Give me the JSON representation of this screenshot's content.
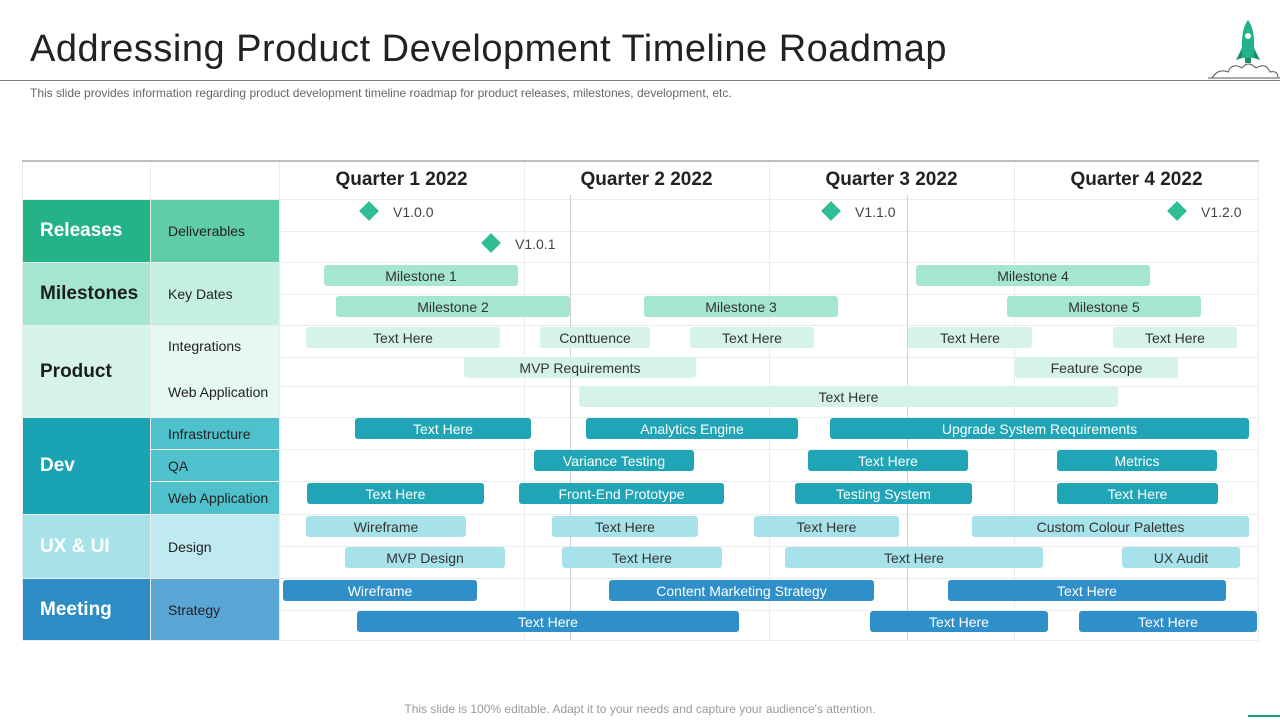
{
  "title": "Addressing Product Development Timeline Roadmap",
  "subtitle": "This slide provides information regarding product development timeline roadmap for product releases, milestones, development, etc.",
  "footer": "This slide is 100% editable. Adapt it to your needs and capture your audience's attention.",
  "icon": "rocket-icon",
  "quarters": [
    "Quarter 1 2022",
    "Quarter 2 2022",
    "Quarter 3 2022",
    "Quarter 4 2022"
  ],
  "categories": {
    "releases": "Releases",
    "milestones": "Milestones",
    "product": "Product",
    "dev": "Dev",
    "ux": "UX & UI",
    "meeting": "Meeting"
  },
  "subcategories": {
    "deliverables": "Deliverables",
    "key_dates": "Key Dates",
    "integrations": "Integrations",
    "web_application": "Web Application",
    "infrastructure": "Infrastructure",
    "qa": "QA",
    "dev_web_application": "Web Application",
    "design": "Design",
    "strategy": "Strategy"
  },
  "releases": {
    "v100": "V1.0.0",
    "v101": "V1.0.1",
    "v110": "V1.1.0",
    "v120": "V1.2.0"
  },
  "milestones": {
    "m1": "Milestone 1",
    "m2": "Milestone 2",
    "m3": "Milestone 3",
    "m4": "Milestone 4",
    "m5": "Milestone 5"
  },
  "product": {
    "integrations": [
      "Text Here",
      "Conttuence",
      "Text Here",
      "Text Here",
      "Text Here"
    ],
    "web_app_row1": [
      "MVP Requirements",
      "Feature Scope"
    ],
    "web_app_row2": [
      "Text Here"
    ]
  },
  "dev": {
    "infrastructure": [
      "Text Here",
      "Analytics Engine",
      "Upgrade System Requirements"
    ],
    "qa": [
      "Variance Testing",
      "Text Here",
      "Metrics"
    ],
    "web_application": [
      "Text Here",
      "Front-End Prototype",
      "Testing System",
      "Text Here"
    ]
  },
  "ux": {
    "design_row1": [
      "Wireframe",
      "Text Here",
      "Text Here",
      "Custom Colour Palettes"
    ],
    "design_row2": [
      "MVP Design",
      "Text Here",
      "Text Here",
      "UX Audit"
    ]
  },
  "meeting": {
    "strategy_row1": [
      "Wireframe",
      "Content Marketing Strategy",
      "Text Here"
    ],
    "strategy_row2": [
      "Text Here",
      "Text Here",
      "Text Here"
    ]
  },
  "colors": {
    "releases": "#23b387",
    "deliverables": "#5fcda6",
    "milestones": "#a4e6cf",
    "milestone_bar": "#a4e6cf",
    "product": "#d5f3e8",
    "product_bar": "#d5f3e8",
    "dev": "#1aa3b2",
    "dev_sub": "#4fc1cd",
    "dev_bar": "#1fa5b5",
    "ux": "#a7e2ea",
    "ux_bar": "#a7e2ea",
    "meeting": "#2d8cc6",
    "meeting_sub": "#5aa7d6",
    "meeting_bar": "#2e8fc9",
    "diamond": "#2ebd95"
  }
}
